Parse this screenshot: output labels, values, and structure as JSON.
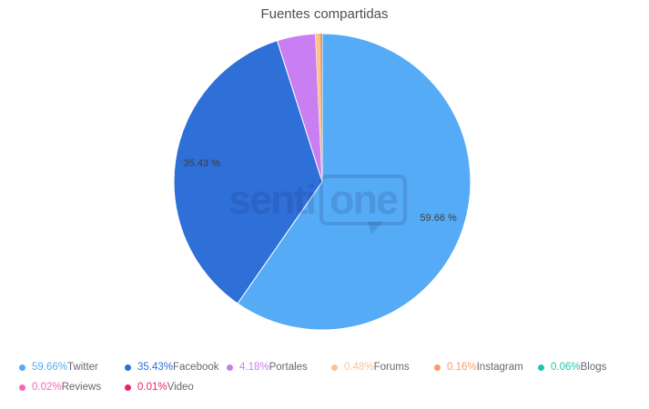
{
  "chart_data": {
    "type": "pie",
    "title": "Fuentes compartidas",
    "direction": "clockwise",
    "start_angle_deg": 0,
    "legend_position": "bottom",
    "inside_labels_min_pct": 5,
    "inside_label_suffix": " %",
    "series": [
      {
        "name": "Twitter",
        "value": 59.66,
        "color": "#55abf5"
      },
      {
        "name": "Facebook",
        "value": 35.43,
        "color": "#2e6fd8"
      },
      {
        "name": "Portales",
        "value": 4.18,
        "color": "#c97ef1"
      },
      {
        "name": "Forums",
        "value": 0.48,
        "color": "#fbc38e"
      },
      {
        "name": "Instagram",
        "value": 0.16,
        "color": "#fa9c64"
      },
      {
        "name": "Blogs",
        "value": 0.06,
        "color": "#21c5ae"
      },
      {
        "name": "Reviews",
        "value": 0.02,
        "color": "#f765be"
      },
      {
        "name": "Video",
        "value": 0.01,
        "color": "#e72372"
      }
    ],
    "inside_labels": [
      "59.66 %",
      "35.43 %"
    ]
  },
  "watermark": {
    "text_outside": "senti",
    "text_inside_bubble": "one"
  }
}
